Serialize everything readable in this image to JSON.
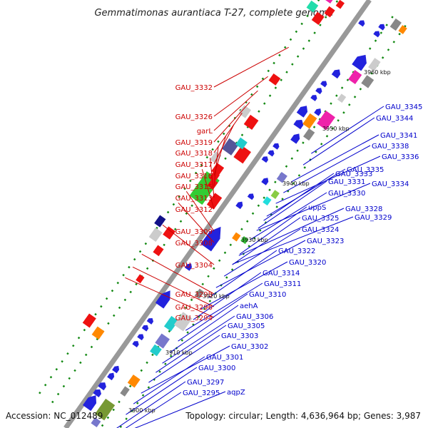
{
  "title": "Gemmatimonas aurantiaca T-27, complete genome",
  "accession": "Accession: NC_012489",
  "topology": "Topology: circular; Length: 4,636,964 bp; Genes: 3,987",
  "kbp_ticks": [
    "3900 kbp",
    "3910 kbp",
    "3920 kbp",
    "3930 kbp",
    "3940 kbp",
    "3950 kbp",
    "3960 kbp"
  ],
  "colors": {
    "left_label": "#cc0000",
    "right_label": "#0000cc",
    "backbone": "#999999",
    "tick": "#118811"
  },
  "left_labels": [
    "GAU_3332",
    "GAU_3326",
    "garL",
    "GAU_3319",
    "GAU_3318",
    "GAU_3317",
    "GAU_3316",
    "GAU_3315",
    "GAU_3313",
    "GAU_3312",
    "GAU_3309",
    "GAU_3308",
    "GAU_3304",
    "GAU_3298",
    "GAU_3296",
    "GAU_3294"
  ],
  "right_labels": [
    "GAU_3345",
    "GAU_3344",
    "GAU_3341",
    "GAU_3338",
    "GAU_3336",
    "GAU_3335",
    "GAU_3334",
    "GAU_3333",
    "GAU_3331",
    "GAU_3330",
    "GAU_3329",
    "GAU_3328",
    "uppS",
    "GAU_3325",
    "GAU_3324",
    "GAU_3323",
    "GAU_3322",
    "GAU_3320",
    "GAU_3314",
    "GAU_3311",
    "GAU_3310",
    "aehA",
    "GAU_3306",
    "GAU_3305",
    "GAU_3303",
    "GAU_3302",
    "GAU_3301",
    "GAU_3300",
    "GAU_3297",
    "aqpZ",
    "GAU_3295"
  ]
}
